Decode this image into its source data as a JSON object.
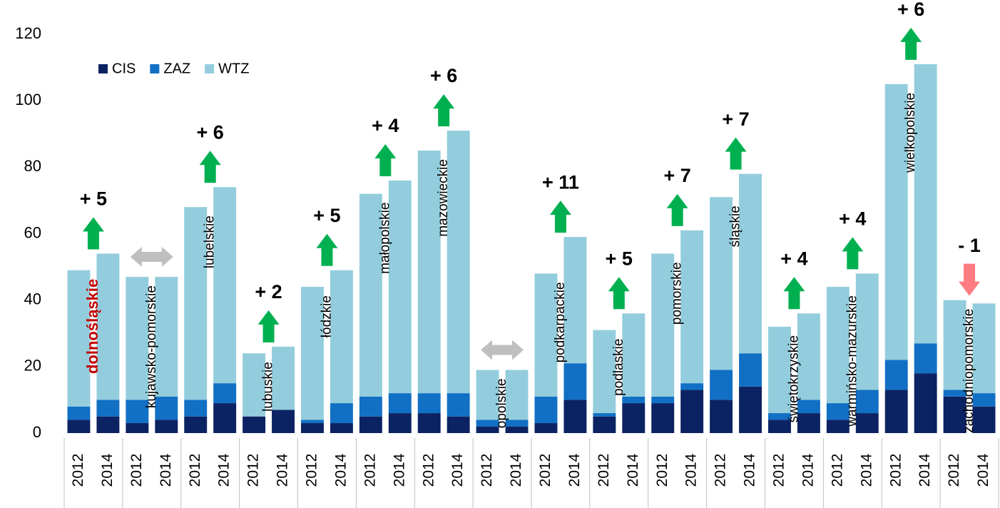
{
  "chart_data": {
    "type": "stacked-bar",
    "categories": [
      "2012",
      "2014",
      "2012",
      "2014",
      "2012",
      "2014",
      "2012",
      "2014",
      "2012",
      "2014",
      "2012",
      "2014",
      "2012",
      "2014",
      "2012",
      "2014",
      "2012",
      "2014",
      "2012",
      "2014",
      "2012",
      "2014",
      "2012",
      "2014",
      "2012",
      "2014",
      "2012",
      "2014",
      "2012",
      "2014",
      "2012",
      "2014"
    ],
    "groups": [
      "dolnośląskie",
      "kujawsko-pomorskie",
      "lubelskie",
      "lubuskie",
      "łódzkie",
      "małopolskie",
      "mazowieckie",
      "opolskie",
      "podkarpackie",
      "podlaskie",
      "pomorskie",
      "śląskie",
      "świętokrzyskie",
      "warmińsko-mazurskie",
      "wielkopolskie",
      "zachodniopomorskie"
    ],
    "changes": [
      "+ 5",
      null,
      "+ 6",
      "+ 2",
      "+ 5",
      "+ 4",
      "+ 6",
      null,
      "+ 11",
      "+ 5",
      "+ 7",
      "+ 7",
      "+ 4",
      "+ 4",
      "+ 6",
      "- 1"
    ],
    "series": [
      {
        "name": "CIS",
        "color": "#0c2363",
        "values": [
          4,
          5,
          3,
          4,
          5,
          9,
          5,
          7,
          3,
          3,
          5,
          6,
          6,
          5,
          2,
          2,
          3,
          10,
          5,
          9,
          9,
          13,
          10,
          14,
          4,
          6,
          4,
          6,
          13,
          18,
          11,
          8
        ]
      },
      {
        "name": "ZAZ",
        "color": "#1170c4",
        "values": [
          4,
          5,
          7,
          7,
          5,
          6,
          0,
          0,
          1,
          6,
          6,
          6,
          6,
          7,
          2,
          2,
          8,
          11,
          1,
          2,
          2,
          2,
          9,
          10,
          2,
          4,
          5,
          7,
          9,
          9,
          2,
          4
        ]
      },
      {
        "name": "WTZ",
        "color": "#93cddd",
        "values": [
          41,
          44,
          37,
          36,
          58,
          59,
          19,
          19,
          40,
          40,
          61,
          64,
          73,
          79,
          15,
          15,
          37,
          38,
          25,
          25,
          43,
          46,
          52,
          54,
          26,
          26,
          35,
          35,
          83,
          84,
          27,
          27
        ]
      }
    ],
    "ylim": [
      0,
      120
    ],
    "yticks": [
      0,
      20,
      40,
      60,
      80,
      100,
      120
    ],
    "legend": "top-left",
    "highlight_group": 0,
    "highlight_color": "#c00000",
    "up_color": "#00b050",
    "down_color": "#ff7c80",
    "same_color": "#bfbfbf"
  }
}
